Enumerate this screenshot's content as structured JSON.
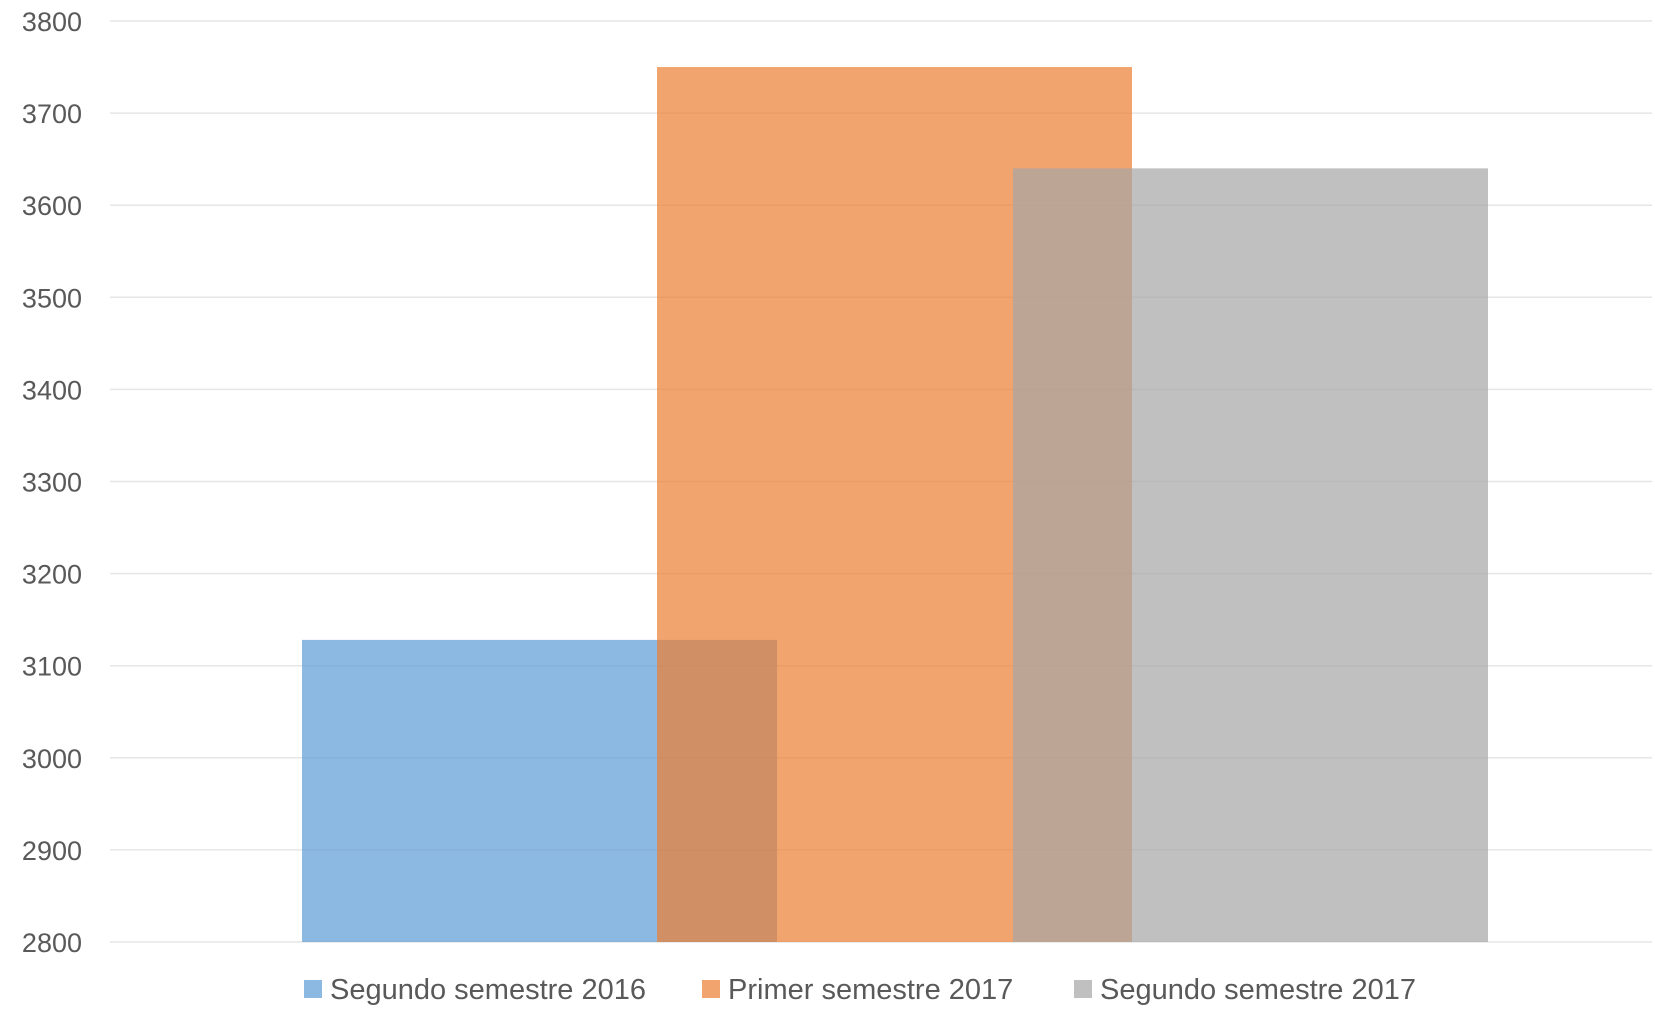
{
  "chart_data": {
    "type": "bar",
    "title": "",
    "xlabel": "",
    "ylabel": "",
    "ylim": [
      2800,
      3800
    ],
    "yticks": [
      2800,
      2900,
      3000,
      3100,
      3200,
      3300,
      3400,
      3500,
      3600,
      3700,
      3800
    ],
    "grid": true,
    "legend_position": "bottom",
    "bar_layout": "overlapping",
    "series": [
      {
        "name": "Segundo semestre 2016",
        "value": 3128,
        "color": "#5B9BD5"
      },
      {
        "name": "Primer semestre 2017",
        "value": 3750,
        "color": "#ED7D31"
      },
      {
        "name": "Segundo semestre 2017",
        "value": 3640,
        "color": "#A5A5A5"
      }
    ]
  }
}
